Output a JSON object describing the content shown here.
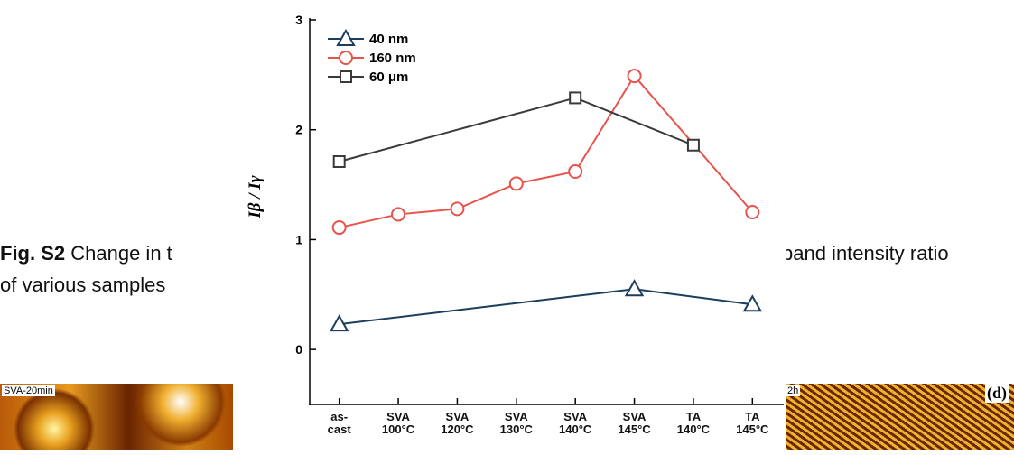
{
  "caption": {
    "label": "Fig. S2",
    "left": "Change in t",
    "right": "band intensity ratio",
    "line2": "of various samples"
  },
  "images": {
    "left_label": "SVA-20min",
    "right_label": "2h",
    "right_panel": "(d)"
  },
  "chart_data": {
    "type": "line",
    "ylabel": "Iβ / Iγ",
    "xlim": [
      -0.5,
      7.5
    ],
    "xticks": [
      {
        "value": 0,
        "label": "as-\ncast"
      },
      {
        "value": 1,
        "label": "SVA\n100°C"
      },
      {
        "value": 2,
        "label": "SVA\n120°C"
      },
      {
        "value": 3,
        "label": "SVA\n130°C"
      },
      {
        "value": 4,
        "label": "SVA\n140°C"
      },
      {
        "value": 5,
        "label": "SVA\n145°C"
      },
      {
        "value": 6,
        "label": "TA\n140°C"
      },
      {
        "value": 7,
        "label": "TA\n145°C"
      }
    ],
    "ylim": [
      -0.5,
      3
    ],
    "yticks": [
      0,
      1,
      2,
      3
    ],
    "legend": "top-left",
    "series": [
      {
        "name": "40 nm",
        "color": "#1b3d5e",
        "marker": "triangle",
        "x": [
          0,
          5,
          7
        ],
        "values": [
          0.23,
          0.55,
          0.41
        ]
      },
      {
        "name": "160 nm",
        "color": "#e8534c",
        "marker": "circle",
        "x": [
          0,
          1,
          2,
          3,
          4,
          5,
          7
        ],
        "values": [
          1.11,
          1.23,
          1.28,
          1.51,
          1.62,
          2.49,
          1.25
        ]
      },
      {
        "name": "60 μm",
        "color": "#3a3a3a",
        "marker": "square",
        "x": [
          0,
          4,
          6
        ],
        "values": [
          1.71,
          2.29,
          1.86
        ]
      }
    ]
  }
}
